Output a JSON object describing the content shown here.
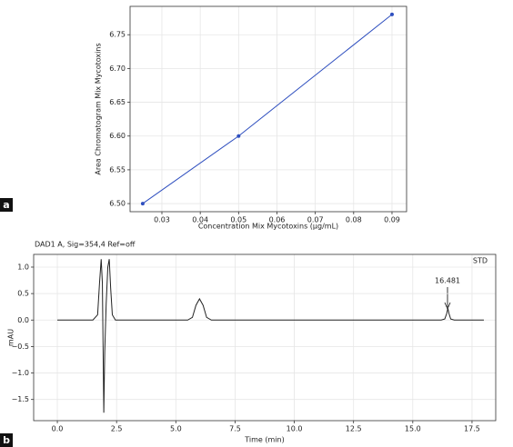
{
  "chart_data": [
    {
      "type": "line",
      "panel_label": "a",
      "xlabel": "Concentration Mix Mycotoxins (μg/mL)",
      "ylabel": "Area Chromatogram Mix Mycotoxins",
      "x": [
        0.025,
        0.05,
        0.09
      ],
      "series": [
        {
          "color": "#2f4fbf",
          "values": [
            6.5,
            6.6,
            6.78
          ]
        }
      ],
      "markers": true,
      "xlim": [
        0.0217,
        0.0938
      ],
      "ylim": [
        6.488,
        6.792
      ],
      "xticks": [
        0.03,
        0.04,
        0.05,
        0.06,
        0.07,
        0.08,
        0.09
      ],
      "yticks": [
        {
          "value": 6.5,
          "label": "6.50"
        },
        6.55,
        {
          "value": 6.6,
          "label": "6.60"
        },
        6.65,
        {
          "value": 6.7,
          "label": "6.70"
        },
        6.75
      ],
      "grid": true
    },
    {
      "type": "line",
      "panel_label": "b",
      "title": "DAD1 A, Sig=354,4 Ref=off",
      "xlabel": "Time (min)",
      "ylabel": "mAU",
      "annotations": [
        {
          "text": "16.481"
        },
        {
          "text": "STD"
        }
      ],
      "x": [
        0,
        1.5,
        1.7,
        1.78,
        1.85,
        1.9,
        1.93,
        1.96,
        2.0,
        2.06,
        2.13,
        2.19,
        2.25,
        2.32,
        2.45,
        5.5,
        5.7,
        5.85,
        6.0,
        6.15,
        6.3,
        6.5,
        16.2,
        16.35,
        16.43,
        16.481,
        16.53,
        16.6,
        16.75,
        18.0
      ],
      "series": [
        {
          "color": "#222222",
          "values": [
            0,
            0,
            0.1,
            0.7,
            1.15,
            0.7,
            -0.5,
            -1.75,
            -0.6,
            0.3,
            1.0,
            1.15,
            0.6,
            0.1,
            0,
            0,
            0.05,
            0.28,
            0.4,
            0.28,
            0.05,
            0,
            0,
            0.02,
            0.12,
            0.22,
            0.12,
            0.02,
            0,
            0
          ]
        }
      ],
      "markers": false,
      "xlim": [
        -1,
        18.5
      ],
      "ylim": [
        -1.9,
        1.24
      ],
      "xticks": [
        {
          "value": 0,
          "label": "0.0"
        },
        2.5,
        {
          "value": 5,
          "label": "5.0"
        },
        7.5,
        {
          "value": 10,
          "label": "10.0"
        },
        12.5,
        {
          "value": 15,
          "label": "15.0"
        },
        17.5
      ],
      "yticks": [
        {
          "value": -1.5,
          "label": "−1.5"
        },
        {
          "value": -1,
          "label": "−1.0"
        },
        {
          "value": -0.5,
          "label": "−0.5"
        },
        {
          "value": 0,
          "label": "0.0"
        },
        0.5,
        {
          "value": 1,
          "label": "1.0"
        }
      ],
      "grid": true
    }
  ]
}
